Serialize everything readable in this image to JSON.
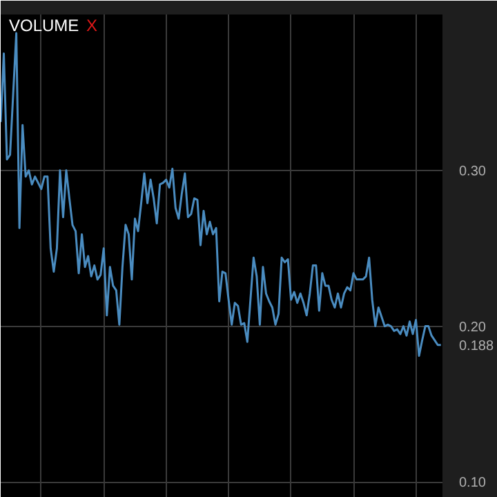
{
  "chart_data": {
    "type": "line",
    "title": "VOLUME",
    "annotations": [
      "X"
    ],
    "categories": [
      null,
      null,
      null,
      null,
      null,
      null,
      null,
      null,
      null,
      null,
      null,
      null,
      null,
      null,
      null,
      null,
      null,
      null,
      null,
      null,
      null,
      null,
      null,
      null,
      null,
      null,
      null,
      null,
      null,
      null,
      null,
      null,
      null,
      null,
      null,
      null,
      null,
      null,
      null,
      null,
      null,
      null,
      null,
      null,
      null,
      null,
      null,
      null,
      null,
      null,
      null,
      null,
      null,
      null,
      null,
      null,
      null,
      null,
      null,
      null,
      null,
      null,
      null,
      null,
      null,
      null,
      null,
      null,
      null,
      null,
      null,
      null,
      null,
      null,
      null,
      null,
      null,
      null,
      null,
      null,
      null,
      null,
      null,
      null,
      null,
      null,
      null,
      null,
      null,
      null,
      null,
      null,
      null,
      null,
      null,
      null,
      null,
      null,
      null,
      null,
      null,
      null,
      null,
      null,
      null,
      null,
      null,
      null,
      null,
      null,
      null,
      null,
      null,
      null,
      null,
      null,
      null,
      null,
      null,
      null,
      null,
      null,
      null,
      null,
      null,
      null,
      null,
      null,
      null,
      null,
      null,
      null,
      null,
      null,
      null,
      null,
      null,
      null,
      null,
      null,
      null,
      null
    ],
    "series": [
      {
        "color": "#4a8cc0",
        "values": [
          0.331,
          0.375,
          0.307,
          0.31,
          0.349,
          0.388,
          0.263,
          0.329,
          0.296,
          0.3,
          0.291,
          0.296,
          0.292,
          0.288,
          0.296,
          0.296,
          0.25,
          0.235,
          0.25,
          0.3,
          0.27,
          0.3,
          0.282,
          0.265,
          0.261,
          0.234,
          0.259,
          0.238,
          0.245,
          0.232,
          0.239,
          0.23,
          0.233,
          0.25,
          0.207,
          0.238,
          0.226,
          0.223,
          0.201,
          0.238,
          0.265,
          0.259,
          0.23,
          0.269,
          0.261,
          0.279,
          0.298,
          0.279,
          0.294,
          0.282,
          0.266,
          0.291,
          0.292,
          0.294,
          0.289,
          0.301,
          0.276,
          0.269,
          0.285,
          0.298,
          0.27,
          0.272,
          0.282,
          0.281,
          0.252,
          0.274,
          0.259,
          0.267,
          0.259,
          0.263,
          0.216,
          0.235,
          0.234,
          0.217,
          0.201,
          0.215,
          0.213,
          0.201,
          0.202,
          0.19,
          0.217,
          0.244,
          0.232,
          0.201,
          0.238,
          0.221,
          0.216,
          0.212,
          0.201,
          0.208,
          0.244,
          0.241,
          0.243,
          0.217,
          0.222,
          0.215,
          0.221,
          0.215,
          0.207,
          0.221,
          0.239,
          0.239,
          0.21,
          0.234,
          0.226,
          0.226,
          0.217,
          0.212,
          0.221,
          0.212,
          0.221,
          0.225,
          0.223,
          0.234,
          0.23,
          0.23,
          0.23,
          0.232,
          0.244,
          0.217,
          0.2,
          0.212,
          0.206,
          0.2,
          0.201,
          0.2,
          0.197,
          0.198,
          0.195,
          0.2,
          0.194,
          0.203,
          0.195,
          0.204,
          0.181,
          0.191,
          0.2,
          0.2,
          0.194,
          0.191,
          0.188,
          0.188
        ]
      }
    ],
    "ylim": [
      0.09,
      0.4
    ],
    "yticks": [
      {
        "value": 0.1,
        "label": "0.10"
      },
      {
        "value": 0.2,
        "label": "0.20"
      },
      {
        "value": 0.3,
        "label": "0.30"
      },
      {
        "value": 0.188,
        "label": "0.188"
      }
    ],
    "grid": true,
    "line_style": "solid"
  }
}
